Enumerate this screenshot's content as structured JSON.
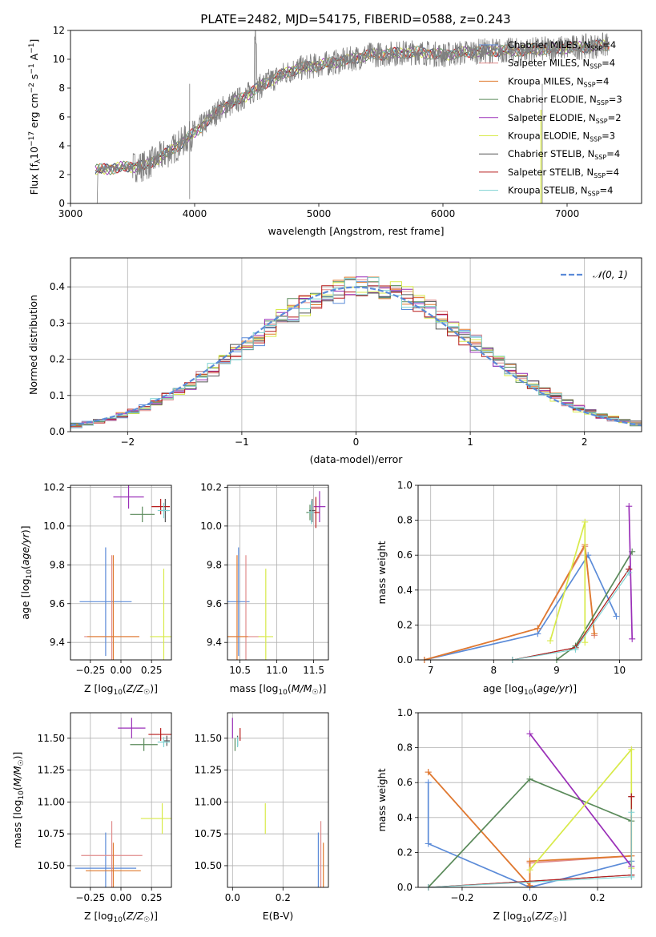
{
  "figure": {
    "title": "PLATE=2482, MJD=54175, FIBERID=0588, z=0.243"
  },
  "colors": {
    "Chabrier MILES": "#5b8bd8",
    "Salpeter MILES": "#e08c8c",
    "Kroupa MILES": "#e07a2e",
    "Chabrier ELODIE": "#5a8a5a",
    "Salpeter ELODIE": "#9a2fb8",
    "Kroupa ELODIE": "#d8ea4a",
    "Chabrier STELIB": "#555555",
    "Salpeter STELIB": "#b81c1c",
    "Kroupa STELIB": "#7ed2d2",
    "data": "#808080",
    "normal": "#5b8bd8"
  },
  "chart_data": [
    {
      "type": "line",
      "id": "spectrum",
      "xlabel": "wavelength [Angstrom, rest frame]",
      "ylabel": "Flux [f_λ 10^-17 erg cm^-2 s^-1 A^-1]",
      "xlim": [
        3000,
        7600
      ],
      "ylim": [
        0,
        12
      ],
      "xticks": [
        3000,
        4000,
        5000,
        6000,
        7000
      ],
      "yticks": [
        0,
        2,
        4,
        6,
        8,
        10,
        12
      ],
      "legend_position": "top-right",
      "legend": [
        {
          "model": "Chabrier MILES",
          "label": "Chabrier MILES, N",
          "nssp": "=4"
        },
        {
          "model": "Salpeter MILES",
          "label": "Salpeter MILES, N",
          "nssp": "=4"
        },
        {
          "model": "Kroupa MILES",
          "label": "Kroupa MILES, N",
          "nssp": "=4"
        },
        {
          "model": "Chabrier ELODIE",
          "label": "Chabrier ELODIE, N",
          "nssp": "=3"
        },
        {
          "model": "Salpeter ELODIE",
          "label": "Salpeter ELODIE, N",
          "nssp": "=2"
        },
        {
          "model": "Kroupa ELODIE",
          "label": "Kroupa ELODIE, N",
          "nssp": "=3"
        },
        {
          "model": "Chabrier STELIB",
          "label": "Chabrier STELIB, N",
          "nssp": "=4"
        },
        {
          "model": "Salpeter STELIB",
          "label": "Salpeter STELIB, N",
          "nssp": "=4"
        },
        {
          "model": "Kroupa STELIB",
          "label": "Kroupa STELIB, N",
          "nssp": "=4"
        }
      ],
      "spectrum_trend": {
        "x": [
          3200,
          3400,
          3600,
          3800,
          4000,
          4200,
          4400,
          4600,
          4800,
          5000,
          5200,
          5400,
          5600,
          5800,
          6000,
          6200,
          6400,
          6600,
          6800,
          7000,
          7200,
          7350
        ],
        "y": [
          2.3,
          2.5,
          2.6,
          3.6,
          4.9,
          6.5,
          7.4,
          8.5,
          9.3,
          9.6,
          9.9,
          10.3,
          10.4,
          10.5,
          10.3,
          10.5,
          10.6,
          10.6,
          10.7,
          10.8,
          10.9,
          11.0
        ]
      }
    },
    {
      "type": "histogram",
      "id": "residuals",
      "xlabel": "(data-model)/error",
      "ylabel": "Normed distribution",
      "xlim": [
        -2.5,
        2.5
      ],
      "ylim": [
        0,
        0.48
      ],
      "xticks": [
        -2,
        -1,
        0,
        1,
        2
      ],
      "yticks": [
        0.0,
        0.1,
        0.2,
        0.3,
        0.4
      ],
      "bin_width": 0.1,
      "legend_position": "top-right",
      "reference_curve": {
        "name": "𝒩(0, 1)",
        "mu": 0,
        "sigma": 1
      }
    },
    {
      "type": "scatter",
      "id": "age_vs_Z",
      "xlabel": "Z [log10(Z/Z☉)]",
      "ylabel": "age  [log10(age/yr)]",
      "xlim": [
        -0.33,
        0.33
      ],
      "ylim": [
        9.31,
        10.21
      ],
      "xticks": [
        -0.2,
        0.0,
        0.2
      ],
      "xticklabels": [
        "−0.25",
        "0.00",
        "0.25"
      ],
      "yticks": [
        9.4,
        9.6,
        9.8,
        10.0,
        10.2
      ],
      "errorbars": [
        {
          "model": "Chabrier MILES",
          "x": -0.1,
          "xerr": 0.17,
          "y": 9.61,
          "yerr": 0.28
        },
        {
          "model": "Salpeter MILES",
          "x": -0.06,
          "xerr": 0.18,
          "y": 9.43,
          "yerr": 0.42
        },
        {
          "model": "Kroupa MILES",
          "x": -0.05,
          "xerr": 0.17,
          "y": 9.43,
          "yerr": 0.42
        },
        {
          "model": "Chabrier ELODIE",
          "x": 0.14,
          "xerr": 0.08,
          "y": 10.06,
          "yerr": 0.04
        },
        {
          "model": "Salpeter ELODIE",
          "x": 0.05,
          "xerr": 0.1,
          "y": 10.15,
          "yerr": 0.06
        },
        {
          "model": "Kroupa ELODIE",
          "x": 0.28,
          "xerr": 0.09,
          "y": 9.43,
          "yerr": 0.35
        },
        {
          "model": "Chabrier STELIB",
          "x": 0.29,
          "xerr": 0.02,
          "y": 10.08,
          "yerr": 0.06
        },
        {
          "model": "Salpeter STELIB",
          "x": 0.26,
          "xerr": 0.06,
          "y": 10.1,
          "yerr": 0.04
        },
        {
          "model": "Kroupa STELIB",
          "x": 0.28,
          "xerr": 0.04,
          "y": 10.08,
          "yerr": 0.04
        }
      ]
    },
    {
      "type": "scatter",
      "id": "age_vs_mass",
      "xlabel": "mass [log10(M/M☉)]",
      "xlim": [
        10.33,
        11.7
      ],
      "ylim": [
        9.31,
        10.21
      ],
      "xticks": [
        10.5,
        11.0,
        11.5
      ],
      "xticklabels": [
        "10.5",
        "11.0",
        "11.5"
      ],
      "yticks": [
        9.4,
        9.6,
        9.8,
        10.0,
        10.2
      ],
      "errorbars": [
        {
          "model": "Chabrier MILES",
          "x": 10.48,
          "xerr": 0.15,
          "y": 9.61,
          "yerr": 0.28
        },
        {
          "model": "Salpeter MILES",
          "x": 10.58,
          "xerr": 0.25,
          "y": 9.43,
          "yerr": 0.42
        },
        {
          "model": "Kroupa MILES",
          "x": 10.46,
          "xerr": 0.15,
          "y": 9.43,
          "yerr": 0.42
        },
        {
          "model": "Chabrier ELODIE",
          "x": 11.45,
          "xerr": 0.05,
          "y": 10.07,
          "yerr": 0.04
        },
        {
          "model": "Salpeter ELODIE",
          "x": 11.58,
          "xerr": 0.08,
          "y": 10.1,
          "yerr": 0.08
        },
        {
          "model": "Kroupa ELODIE",
          "x": 10.85,
          "xerr": 0.1,
          "y": 9.43,
          "yerr": 0.35
        },
        {
          "model": "Chabrier STELIB",
          "x": 11.48,
          "xerr": 0.04,
          "y": 10.08,
          "yerr": 0.06
        },
        {
          "model": "Salpeter STELIB",
          "x": 11.53,
          "xerr": 0.05,
          "y": 10.07,
          "yerr": 0.08
        },
        {
          "model": "Kroupa STELIB",
          "x": 11.47,
          "xerr": 0.04,
          "y": 10.07,
          "yerr": 0.06
        }
      ]
    },
    {
      "type": "line",
      "id": "weight_vs_age",
      "xlabel": "age  [log10(age/yr)]",
      "ylabel": "mass weight",
      "xlim": [
        6.8,
        10.35
      ],
      "ylim": [
        0.0,
        1.0
      ],
      "xticks": [
        7,
        8,
        9,
        10
      ],
      "yticks": [
        0.0,
        0.2,
        0.4,
        0.6,
        0.8,
        1.0
      ],
      "series": [
        {
          "model": "Chabrier MILES",
          "x": [
            6.9,
            8.7,
            9.5,
            9.95
          ],
          "y": [
            0.0,
            0.15,
            0.6,
            0.25
          ]
        },
        {
          "model": "Salpeter MILES",
          "x": [
            6.9,
            8.7,
            9.45,
            9.6
          ],
          "y": [
            0.0,
            0.18,
            0.65,
            0.14
          ]
        },
        {
          "model": "Kroupa MILES",
          "x": [
            6.9,
            8.7,
            9.45,
            9.6
          ],
          "y": [
            0.0,
            0.18,
            0.66,
            0.15
          ]
        },
        {
          "model": "Chabrier ELODIE",
          "x": [
            9.0,
            9.3,
            10.2
          ],
          "y": [
            0.0,
            0.08,
            0.62
          ]
        },
        {
          "model": "Salpeter ELODIE",
          "x": [
            10.15,
            10.2
          ],
          "y": [
            0.88,
            0.12
          ]
        },
        {
          "model": "Kroupa ELODIE",
          "x": [
            8.9,
            9.45,
            9.45
          ],
          "y": [
            0.11,
            0.79,
            0.1
          ]
        },
        {
          "model": "Chabrier STELIB",
          "x": [
            8.3,
            9.3,
            10.15
          ],
          "y": [
            0.0,
            0.07,
            0.52
          ]
        },
        {
          "model": "Salpeter STELIB",
          "x": [
            8.3,
            9.3,
            10.15
          ],
          "y": [
            0.0,
            0.07,
            0.52
          ]
        },
        {
          "model": "Kroupa STELIB",
          "x": [
            8.3,
            9.3,
            10.15
          ],
          "y": [
            0.0,
            0.06,
            0.5
          ]
        }
      ]
    },
    {
      "type": "scatter",
      "id": "mass_vs_Z",
      "xlabel": "Z [log10(Z/Z☉)]",
      "ylabel": "mass [log10(M/M☉)]",
      "xlim": [
        -0.33,
        0.33
      ],
      "ylim": [
        10.33,
        11.7
      ],
      "xticks": [
        -0.2,
        0.0,
        0.2
      ],
      "xticklabels": [
        "−0.25",
        "0.00",
        "0.25"
      ],
      "yticks": [
        10.5,
        10.75,
        11.0,
        11.25,
        11.5
      ],
      "errorbars": [
        {
          "model": "Chabrier MILES",
          "x": -0.1,
          "xerr": 0.2,
          "y": 10.48,
          "yerr": 0.28
        },
        {
          "model": "Salpeter MILES",
          "x": -0.06,
          "xerr": 0.2,
          "y": 10.58,
          "yerr": 0.27
        },
        {
          "model": "Kroupa MILES",
          "x": -0.05,
          "xerr": 0.18,
          "y": 10.46,
          "yerr": 0.22
        },
        {
          "model": "Chabrier ELODIE",
          "x": 0.15,
          "xerr": 0.09,
          "y": 11.45,
          "yerr": 0.05
        },
        {
          "model": "Salpeter ELODIE",
          "x": 0.07,
          "xerr": 0.09,
          "y": 11.58,
          "yerr": 0.08
        },
        {
          "model": "Kroupa ELODIE",
          "x": 0.27,
          "xerr": 0.14,
          "y": 10.87,
          "yerr": 0.12
        },
        {
          "model": "Chabrier STELIB",
          "x": 0.3,
          "xerr": 0.02,
          "y": 11.48,
          "yerr": 0.04
        },
        {
          "model": "Salpeter STELIB",
          "x": 0.26,
          "xerr": 0.08,
          "y": 11.53,
          "yerr": 0.05
        },
        {
          "model": "Kroupa STELIB",
          "x": 0.28,
          "xerr": 0.04,
          "y": 11.47,
          "yerr": 0.04
        }
      ]
    },
    {
      "type": "scatter",
      "id": "mass_vs_ebv",
      "xlabel": "E(B-V)",
      "xlim": [
        -0.02,
        0.38
      ],
      "ylim": [
        10.33,
        11.7
      ],
      "xticks": [
        0.0,
        0.2
      ],
      "xticklabels": [
        "0.0",
        "0.2"
      ],
      "yticks": [
        10.5,
        10.75,
        11.0,
        11.25,
        11.5
      ],
      "errorbars": [
        {
          "model": "Chabrier MILES",
          "x": 0.34,
          "xerr": 0,
          "y": 10.48,
          "yerr": 0.28
        },
        {
          "model": "Salpeter MILES",
          "x": 0.35,
          "xerr": 0,
          "y": 10.58,
          "yerr": 0.27
        },
        {
          "model": "Kroupa MILES",
          "x": 0.36,
          "xerr": 0,
          "y": 10.46,
          "yerr": 0.22
        },
        {
          "model": "Chabrier ELODIE",
          "x": 0.01,
          "xerr": 0,
          "y": 11.45,
          "yerr": 0.05
        },
        {
          "model": "Salpeter ELODIE",
          "x": 0.0,
          "xerr": 0,
          "y": 11.58,
          "yerr": 0.08
        },
        {
          "model": "Kroupa ELODIE",
          "x": 0.13,
          "xerr": 0,
          "y": 10.87,
          "yerr": 0.12
        },
        {
          "model": "Chabrier STELIB",
          "x": 0.02,
          "xerr": 0,
          "y": 11.48,
          "yerr": 0.04
        },
        {
          "model": "Salpeter STELIB",
          "x": 0.03,
          "xerr": 0,
          "y": 11.53,
          "yerr": 0.05
        },
        {
          "model": "Kroupa STELIB",
          "x": 0.02,
          "xerr": 0,
          "y": 11.47,
          "yerr": 0.04
        }
      ]
    },
    {
      "type": "line",
      "id": "weight_vs_Z",
      "xlabel": "Z [log10(Z/Z☉)]",
      "ylabel": "mass weight",
      "xlim": [
        -0.33,
        0.33
      ],
      "ylim": [
        0.0,
        1.0
      ],
      "xticks": [
        -0.2,
        0.0,
        0.2
      ],
      "xticklabels": [
        "−0.2",
        "0.0",
        "0.2"
      ],
      "yticks": [
        0.0,
        0.2,
        0.4,
        0.6,
        0.8,
        1.0
      ],
      "series": [
        {
          "model": "Chabrier MILES",
          "x": [
            -0.3,
            -0.3,
            0.0,
            0.3
          ],
          "y": [
            0.6,
            0.25,
            0.0,
            0.15
          ]
        },
        {
          "model": "Salpeter MILES",
          "x": [
            -0.3,
            0.0,
            0.0,
            0.3
          ],
          "y": [
            0.66,
            0.01,
            0.14,
            0.18
          ]
        },
        {
          "model": "Kroupa MILES",
          "x": [
            -0.3,
            0.0,
            0.0,
            0.3
          ],
          "y": [
            0.66,
            0.01,
            0.15,
            0.18
          ]
        },
        {
          "model": "Chabrier ELODIE",
          "x": [
            -0.3,
            0.0,
            0.3
          ],
          "y": [
            0.0,
            0.62,
            0.38
          ]
        },
        {
          "model": "Salpeter ELODIE",
          "x": [
            0.0,
            0.3
          ],
          "y": [
            0.88,
            0.12
          ]
        },
        {
          "model": "Kroupa ELODIE",
          "x": [
            0.0,
            0.3,
            0.3
          ],
          "y": [
            0.1,
            0.79,
            0.11
          ]
        },
        {
          "model": "Chabrier STELIB",
          "x": [
            -0.3,
            0.3,
            0.3
          ],
          "y": [
            0.0,
            0.07,
            0.52
          ]
        },
        {
          "model": "Salpeter STELIB",
          "x": [
            -0.3,
            0.3,
            0.3
          ],
          "y": [
            0.0,
            0.07,
            0.52
          ]
        },
        {
          "model": "Kroupa STELIB",
          "x": [
            -0.3,
            0.3,
            0.3
          ],
          "y": [
            0.0,
            0.06,
            0.43
          ]
        }
      ]
    }
  ]
}
